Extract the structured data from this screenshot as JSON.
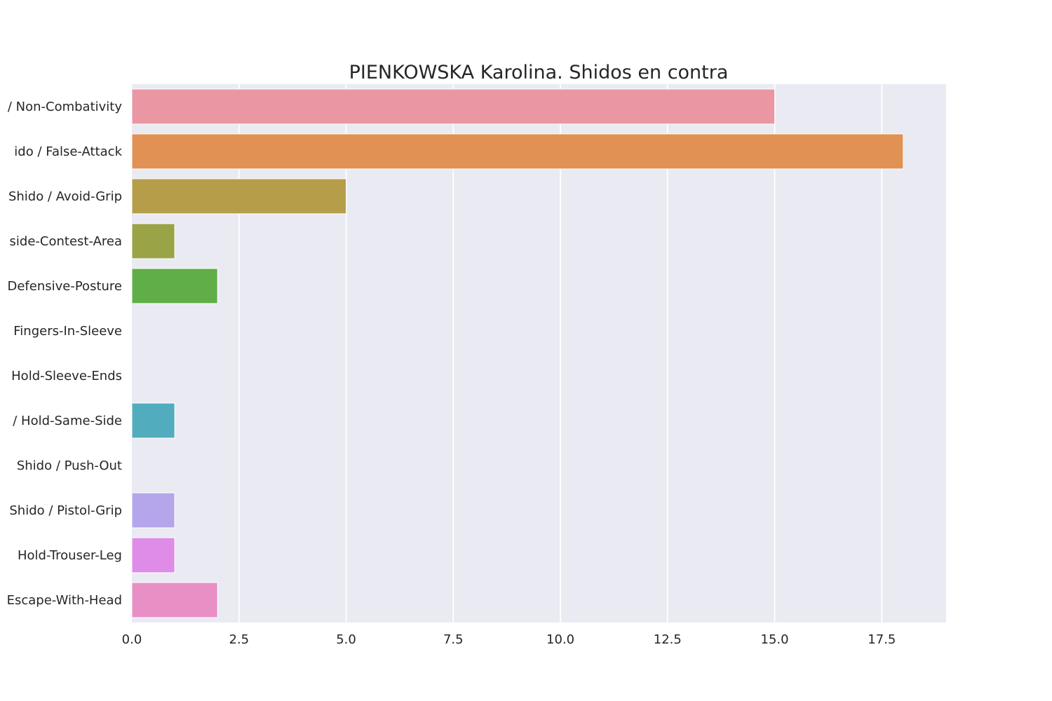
{
  "chart_data": {
    "type": "bar",
    "orientation": "horizontal",
    "title": "PIENKOWSKA Karolina. Shidos en contra",
    "xlabel": "",
    "ylabel": "",
    "xlim": [
      0,
      19
    ],
    "x_ticks": [
      0.0,
      2.5,
      5.0,
      7.5,
      10.0,
      12.5,
      15.0,
      17.5
    ],
    "x_tick_labels": [
      "0.0",
      "2.5",
      "5.0",
      "7.5",
      "10.0",
      "12.5",
      "15.0",
      "17.5"
    ],
    "grid": true,
    "background": "#eaeaf2",
    "categories": [
      "/ Non-Combativity",
      "ido / False-Attack",
      "Shido / Avoid-Grip",
      "side-Contest-Area",
      "Defensive-Posture",
      "Fingers-In-Sleeve",
      "Hold-Sleeve-Ends",
      "/ Hold-Same-Side",
      "Shido / Push-Out",
      "Shido / Pistol-Grip",
      "Hold-Trouser-Leg",
      "Escape-With-Head"
    ],
    "values": [
      15,
      18,
      5,
      1,
      2,
      0,
      0,
      1,
      0,
      1,
      1,
      2
    ],
    "colors": [
      "#ea96a3",
      "#e19153",
      "#b69d4a",
      "#9aa346",
      "#60ae47",
      "#4fb092",
      "#4caea9",
      "#51acbd",
      "#6ea7e2",
      "#b5a6ec",
      "#df8ce8",
      "#e88fc6"
    ]
  }
}
